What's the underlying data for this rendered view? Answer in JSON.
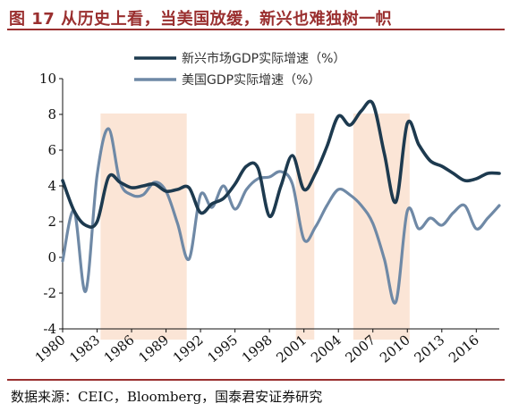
{
  "figure": {
    "title": "图 17  从历史上看，当美国放缓，新兴也难独树一帜",
    "source": "数据来源：CEIC，Bloomberg，国泰君安证券研究"
  },
  "colors": {
    "title_red": "#9a2f2f",
    "series_em": "#1d3a4f",
    "series_us": "#6f89a6",
    "shade": "#fbe5d6",
    "axis": "#111111"
  },
  "chart_data": {
    "type": "line",
    "title": "",
    "xlabel": "",
    "ylabel": "",
    "xlim": [
      1980,
      2018
    ],
    "ylim": [
      -4,
      10
    ],
    "y_ticks": [
      -4,
      -2,
      0,
      2,
      4,
      6,
      8,
      10
    ],
    "x_tick_labels": [
      "1980",
      "1983",
      "1986",
      "1989",
      "1992",
      "1995",
      "1998",
      "2001",
      "2004",
      "2007",
      "2010",
      "2013",
      "2016"
    ],
    "grid": false,
    "legend_position": "top-center",
    "shaded_periods": [
      {
        "start": 1983.3,
        "end": 1990.8
      },
      {
        "start": 2000.3,
        "end": 2001.9
      },
      {
        "start": 2005.3,
        "end": 2010.2
      }
    ],
    "x": [
      1980,
      1981,
      1982,
      1983,
      1984,
      1985,
      1986,
      1987,
      1988,
      1989,
      1990,
      1991,
      1992,
      1993,
      1994,
      1995,
      1996,
      1997,
      1998,
      1999,
      2000,
      2001,
      2002,
      2003,
      2004,
      2005,
      2006,
      2007,
      2008,
      2009,
      2010,
      2011,
      2012,
      2013,
      2014,
      2015,
      2016,
      2017,
      2018
    ],
    "series": [
      {
        "name": "新兴市场GDP实际增速（%）",
        "color": "#1d3a4f",
        "values": [
          4.3,
          2.6,
          1.8,
          2.0,
          4.5,
          4.2,
          3.9,
          4.0,
          4.1,
          3.7,
          3.8,
          3.9,
          2.5,
          3.0,
          3.3,
          4.1,
          5.1,
          5.0,
          2.3,
          4.0,
          5.7,
          3.8,
          4.7,
          6.2,
          7.9,
          7.4,
          8.2,
          8.6,
          5.8,
          3.1,
          7.5,
          6.3,
          5.4,
          5.1,
          4.7,
          4.3,
          4.4,
          4.7,
          4.7
        ]
      },
      {
        "name": "美国GDP实际增速（%）",
        "color": "#6f89a6",
        "values": [
          -0.2,
          2.6,
          -1.9,
          4.6,
          7.2,
          4.2,
          3.5,
          3.5,
          4.2,
          3.7,
          1.9,
          -0.1,
          3.5,
          2.8,
          4.0,
          2.7,
          3.8,
          4.4,
          4.5,
          4.8,
          4.1,
          1.0,
          1.7,
          2.9,
          3.8,
          3.5,
          2.9,
          1.9,
          -0.1,
          -2.5,
          2.6,
          1.6,
          2.2,
          1.8,
          2.5,
          2.9,
          1.6,
          2.2,
          2.9
        ]
      }
    ]
  }
}
